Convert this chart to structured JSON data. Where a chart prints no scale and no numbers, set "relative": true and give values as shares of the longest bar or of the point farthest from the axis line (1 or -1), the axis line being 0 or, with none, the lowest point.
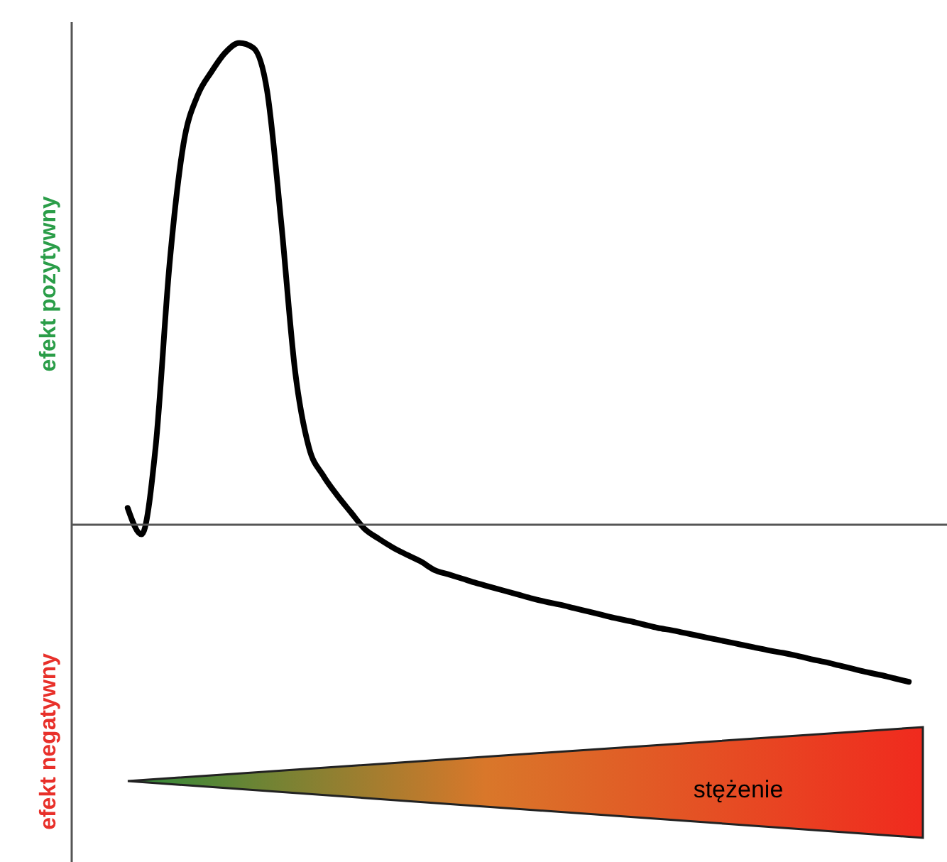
{
  "chart_data": {
    "type": "line",
    "relative": true,
    "xlabel": "stężenie",
    "annotations": [
      "efekt pozytywny",
      "efekt negatywny"
    ],
    "categories": [
      null,
      null,
      null,
      null,
      null,
      null,
      null,
      null,
      null,
      null,
      null,
      null,
      null,
      null,
      null,
      null,
      null,
      null,
      null,
      null,
      null,
      null,
      null,
      null,
      null,
      null,
      null,
      null,
      null,
      null,
      null,
      null,
      null,
      null,
      null,
      null,
      null,
      null,
      null,
      null,
      null,
      null,
      null,
      null,
      null,
      null,
      null,
      null,
      null,
      null,
      null,
      null,
      null,
      null,
      null,
      null,
      null
    ],
    "series": [
      {
        "color": "#000000",
        "values": [
          0.035,
          -0.02,
          0.16,
          0.54,
          0.79,
          0.89,
          0.94,
          0.98,
          1,
          0.99,
          0.9,
          0.63,
          0.32,
          0.16,
          0.103,
          0.062,
          0.026,
          -0.009,
          -0.029,
          -0.047,
          -0.062,
          -0.076,
          -0.094,
          -0.103,
          -0.112,
          -0.121,
          -0.129,
          -0.137,
          -0.145,
          -0.153,
          -0.16,
          -0.166,
          -0.173,
          -0.18,
          -0.187,
          -0.194,
          -0.2,
          -0.207,
          -0.214,
          -0.219,
          -0.225,
          -0.231,
          -0.237,
          -0.243,
          -0.249,
          -0.255,
          -0.261,
          -0.266,
          -0.272,
          -0.279,
          -0.285,
          -0.292,
          -0.299,
          -0.306,
          -0.312,
          -0.319,
          -0.326
        ]
      }
    ]
  }
}
